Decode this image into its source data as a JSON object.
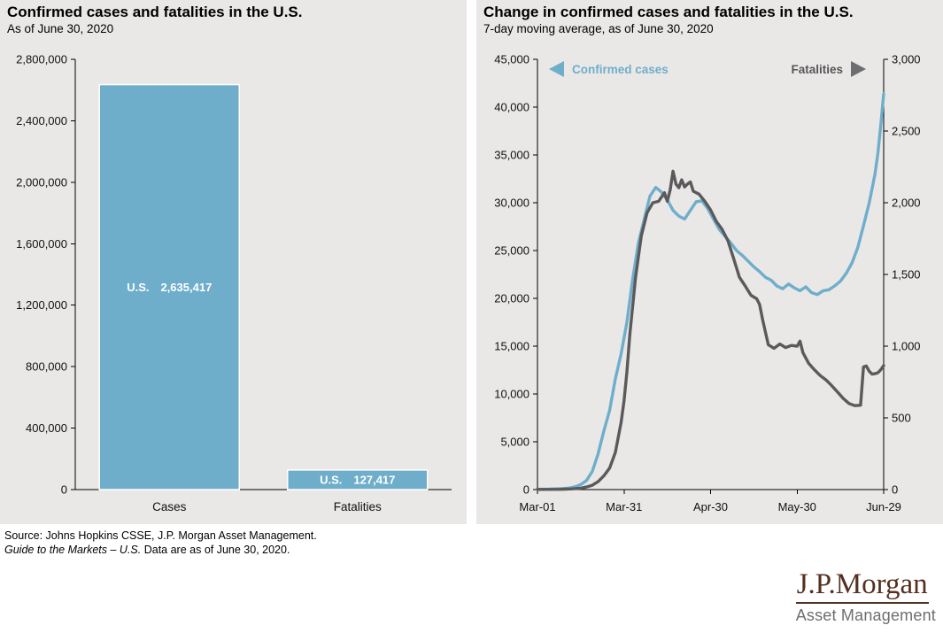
{
  "page": {
    "background": "#ffffff",
    "panel_background": "#e9e8e6"
  },
  "chart_data": [
    {
      "type": "bar",
      "title": "Confirmed cases and fatalities in the U.S.",
      "subtitle": "As of June 30, 2020",
      "categories": [
        "Cases",
        "Fatalities"
      ],
      "values": [
        2635417,
        127417
      ],
      "value_labels": [
        "2,635,417",
        "127,417"
      ],
      "bar_label_prefix": "U.S.",
      "bar_color": "#6FAECB",
      "bar_border_color": "#ffffff",
      "ylim": [
        0,
        2800000
      ],
      "grid": false,
      "legend_position": "none",
      "yticks": {
        "values": [
          0,
          400000,
          800000,
          1200000,
          1600000,
          2000000,
          2400000,
          2800000
        ],
        "labels": [
          "0",
          "400,000",
          "800,000",
          "1,200,000",
          "1,600,000",
          "2,000,000",
          "2,400,000",
          "2,800,000"
        ]
      }
    },
    {
      "type": "line",
      "title": "Change in confirmed cases and fatalities in the U.S.",
      "subtitle": "7-day moving average, as of June 30, 2020",
      "grid": false,
      "x_axis": {
        "range_days": [
          0,
          120
        ],
        "tick_days": [
          0,
          30,
          60,
          90,
          120
        ],
        "tick_labels": [
          "Mar-01",
          "Mar-31",
          "Apr-30",
          "May-30",
          "Jun-29"
        ]
      },
      "left_axis": {
        "ylim": [
          0,
          45000
        ],
        "tick_values": [
          0,
          5000,
          10000,
          15000,
          20000,
          25000,
          30000,
          35000,
          40000,
          45000
        ],
        "tick_labels": [
          "0",
          "5,000",
          "10,000",
          "15,000",
          "20,000",
          "25,000",
          "30,000",
          "35,000",
          "40,000",
          "45,000"
        ],
        "series": "Confirmed cases"
      },
      "right_axis": {
        "ylim": [
          0,
          3000
        ],
        "tick_values": [
          0,
          500,
          1000,
          1500,
          2000,
          2500,
          3000
        ],
        "tick_labels": [
          "0",
          "500",
          "1,000",
          "1,500",
          "2,000",
          "2,500",
          "3,000"
        ],
        "series": "Fatalities"
      },
      "legend": {
        "cases_label": "Confirmed cases",
        "cases_color": "#6FAECB",
        "fatalities_label": "Fatalities",
        "fatalities_color": "#55565A",
        "arrow_color": "#6d6e71"
      },
      "series": [
        {
          "name": "Confirmed cases",
          "axis": "left",
          "color": "#6FAECB",
          "points": [
            [
              0,
              30
            ],
            [
              4,
              50
            ],
            [
              8,
              90
            ],
            [
              11,
              160
            ],
            [
              13,
              300
            ],
            [
              15,
              520
            ],
            [
              17,
              950
            ],
            [
              19,
              1900
            ],
            [
              21,
              3700
            ],
            [
              23,
              6100
            ],
            [
              25,
              8300
            ],
            [
              27,
              11600
            ],
            [
              29,
              14200
            ],
            [
              31,
              17500
            ],
            [
              33,
              22000
            ],
            [
              35,
              25800
            ],
            [
              37,
              28300
            ],
            [
              39,
              30700
            ],
            [
              41,
              31600
            ],
            [
              43,
              31100
            ],
            [
              45,
              30300
            ],
            [
              47,
              29200
            ],
            [
              49,
              28600
            ],
            [
              51,
              28300
            ],
            [
              53,
              29200
            ],
            [
              55,
              30100
            ],
            [
              57,
              30200
            ],
            [
              59,
              29400
            ],
            [
              61,
              28300
            ],
            [
              63,
              27200
            ],
            [
              65,
              26500
            ],
            [
              67,
              25800
            ],
            [
              69,
              25000
            ],
            [
              71,
              24500
            ],
            [
              73,
              23900
            ],
            [
              75,
              23300
            ],
            [
              77,
              22800
            ],
            [
              79,
              22200
            ],
            [
              81,
              21900
            ],
            [
              83,
              21300
            ],
            [
              85,
              21000
            ],
            [
              87,
              21500
            ],
            [
              89,
              21100
            ],
            [
              91,
              20800
            ],
            [
              93,
              21200
            ],
            [
              95,
              20600
            ],
            [
              97,
              20400
            ],
            [
              99,
              20800
            ],
            [
              101,
              20900
            ],
            [
              103,
              21300
            ],
            [
              105,
              21800
            ],
            [
              107,
              22600
            ],
            [
              109,
              23700
            ],
            [
              111,
              25300
            ],
            [
              113,
              27600
            ],
            [
              115,
              30000
            ],
            [
              117,
              33000
            ],
            [
              118,
              35200
            ],
            [
              119,
              38100
            ],
            [
              120,
              41400
            ]
          ]
        },
        {
          "name": "Fatalities",
          "axis": "right",
          "color": "#5A5A5C",
          "points": [
            [
              0,
              1
            ],
            [
              8,
              2
            ],
            [
              12,
              5
            ],
            [
              15,
              10
            ],
            [
              17,
              18
            ],
            [
              19,
              30
            ],
            [
              21,
              55
            ],
            [
              23,
              95
            ],
            [
              25,
              150
            ],
            [
              27,
              260
            ],
            [
              29,
              470
            ],
            [
              30,
              620
            ],
            [
              31,
              820
            ],
            [
              32,
              1080
            ],
            [
              34,
              1480
            ],
            [
              36,
              1770
            ],
            [
              38,
              1930
            ],
            [
              40,
              2000
            ],
            [
              42,
              2010
            ],
            [
              44,
              2070
            ],
            [
              45,
              2010
            ],
            [
              46,
              2090
            ],
            [
              47,
              2220
            ],
            [
              48,
              2130
            ],
            [
              49,
              2105
            ],
            [
              50,
              2160
            ],
            [
              51,
              2110
            ],
            [
              52,
              2130
            ],
            [
              53,
              2145
            ],
            [
              54,
              2080
            ],
            [
              56,
              2060
            ],
            [
              58,
              2010
            ],
            [
              60,
              1950
            ],
            [
              62,
              1870
            ],
            [
              64,
              1815
            ],
            [
              66,
              1735
            ],
            [
              68,
              1610
            ],
            [
              70,
              1480
            ],
            [
              72,
              1420
            ],
            [
              74,
              1355
            ],
            [
              76,
              1330
            ],
            [
              77,
              1290
            ],
            [
              78,
              1190
            ],
            [
              80,
              1010
            ],
            [
              82,
              985
            ],
            [
              84,
              1015
            ],
            [
              86,
              990
            ],
            [
              88,
              1005
            ],
            [
              90,
              1000
            ],
            [
              91,
              1035
            ],
            [
              92,
              955
            ],
            [
              94,
              880
            ],
            [
              96,
              835
            ],
            [
              98,
              795
            ],
            [
              100,
              765
            ],
            [
              102,
              725
            ],
            [
              104,
              680
            ],
            [
              106,
              635
            ],
            [
              108,
              600
            ],
            [
              110,
              585
            ],
            [
              112,
              588
            ],
            [
              113,
              855
            ],
            [
              114,
              862
            ],
            [
              115,
              825
            ],
            [
              116,
              805
            ],
            [
              117,
              808
            ],
            [
              118,
              815
            ],
            [
              119,
              835
            ],
            [
              120,
              865
            ]
          ]
        }
      ]
    }
  ],
  "source": {
    "line1": "Source: Johns Hopkins CSSE, J.P. Morgan Asset Management.",
    "line2_italic": "Guide to the Markets – U.S.",
    "line2_rest": " Data are as of June 30, 2020."
  },
  "logo": {
    "name": "J.P.Morgan",
    "subtitle": "Asset Management"
  }
}
